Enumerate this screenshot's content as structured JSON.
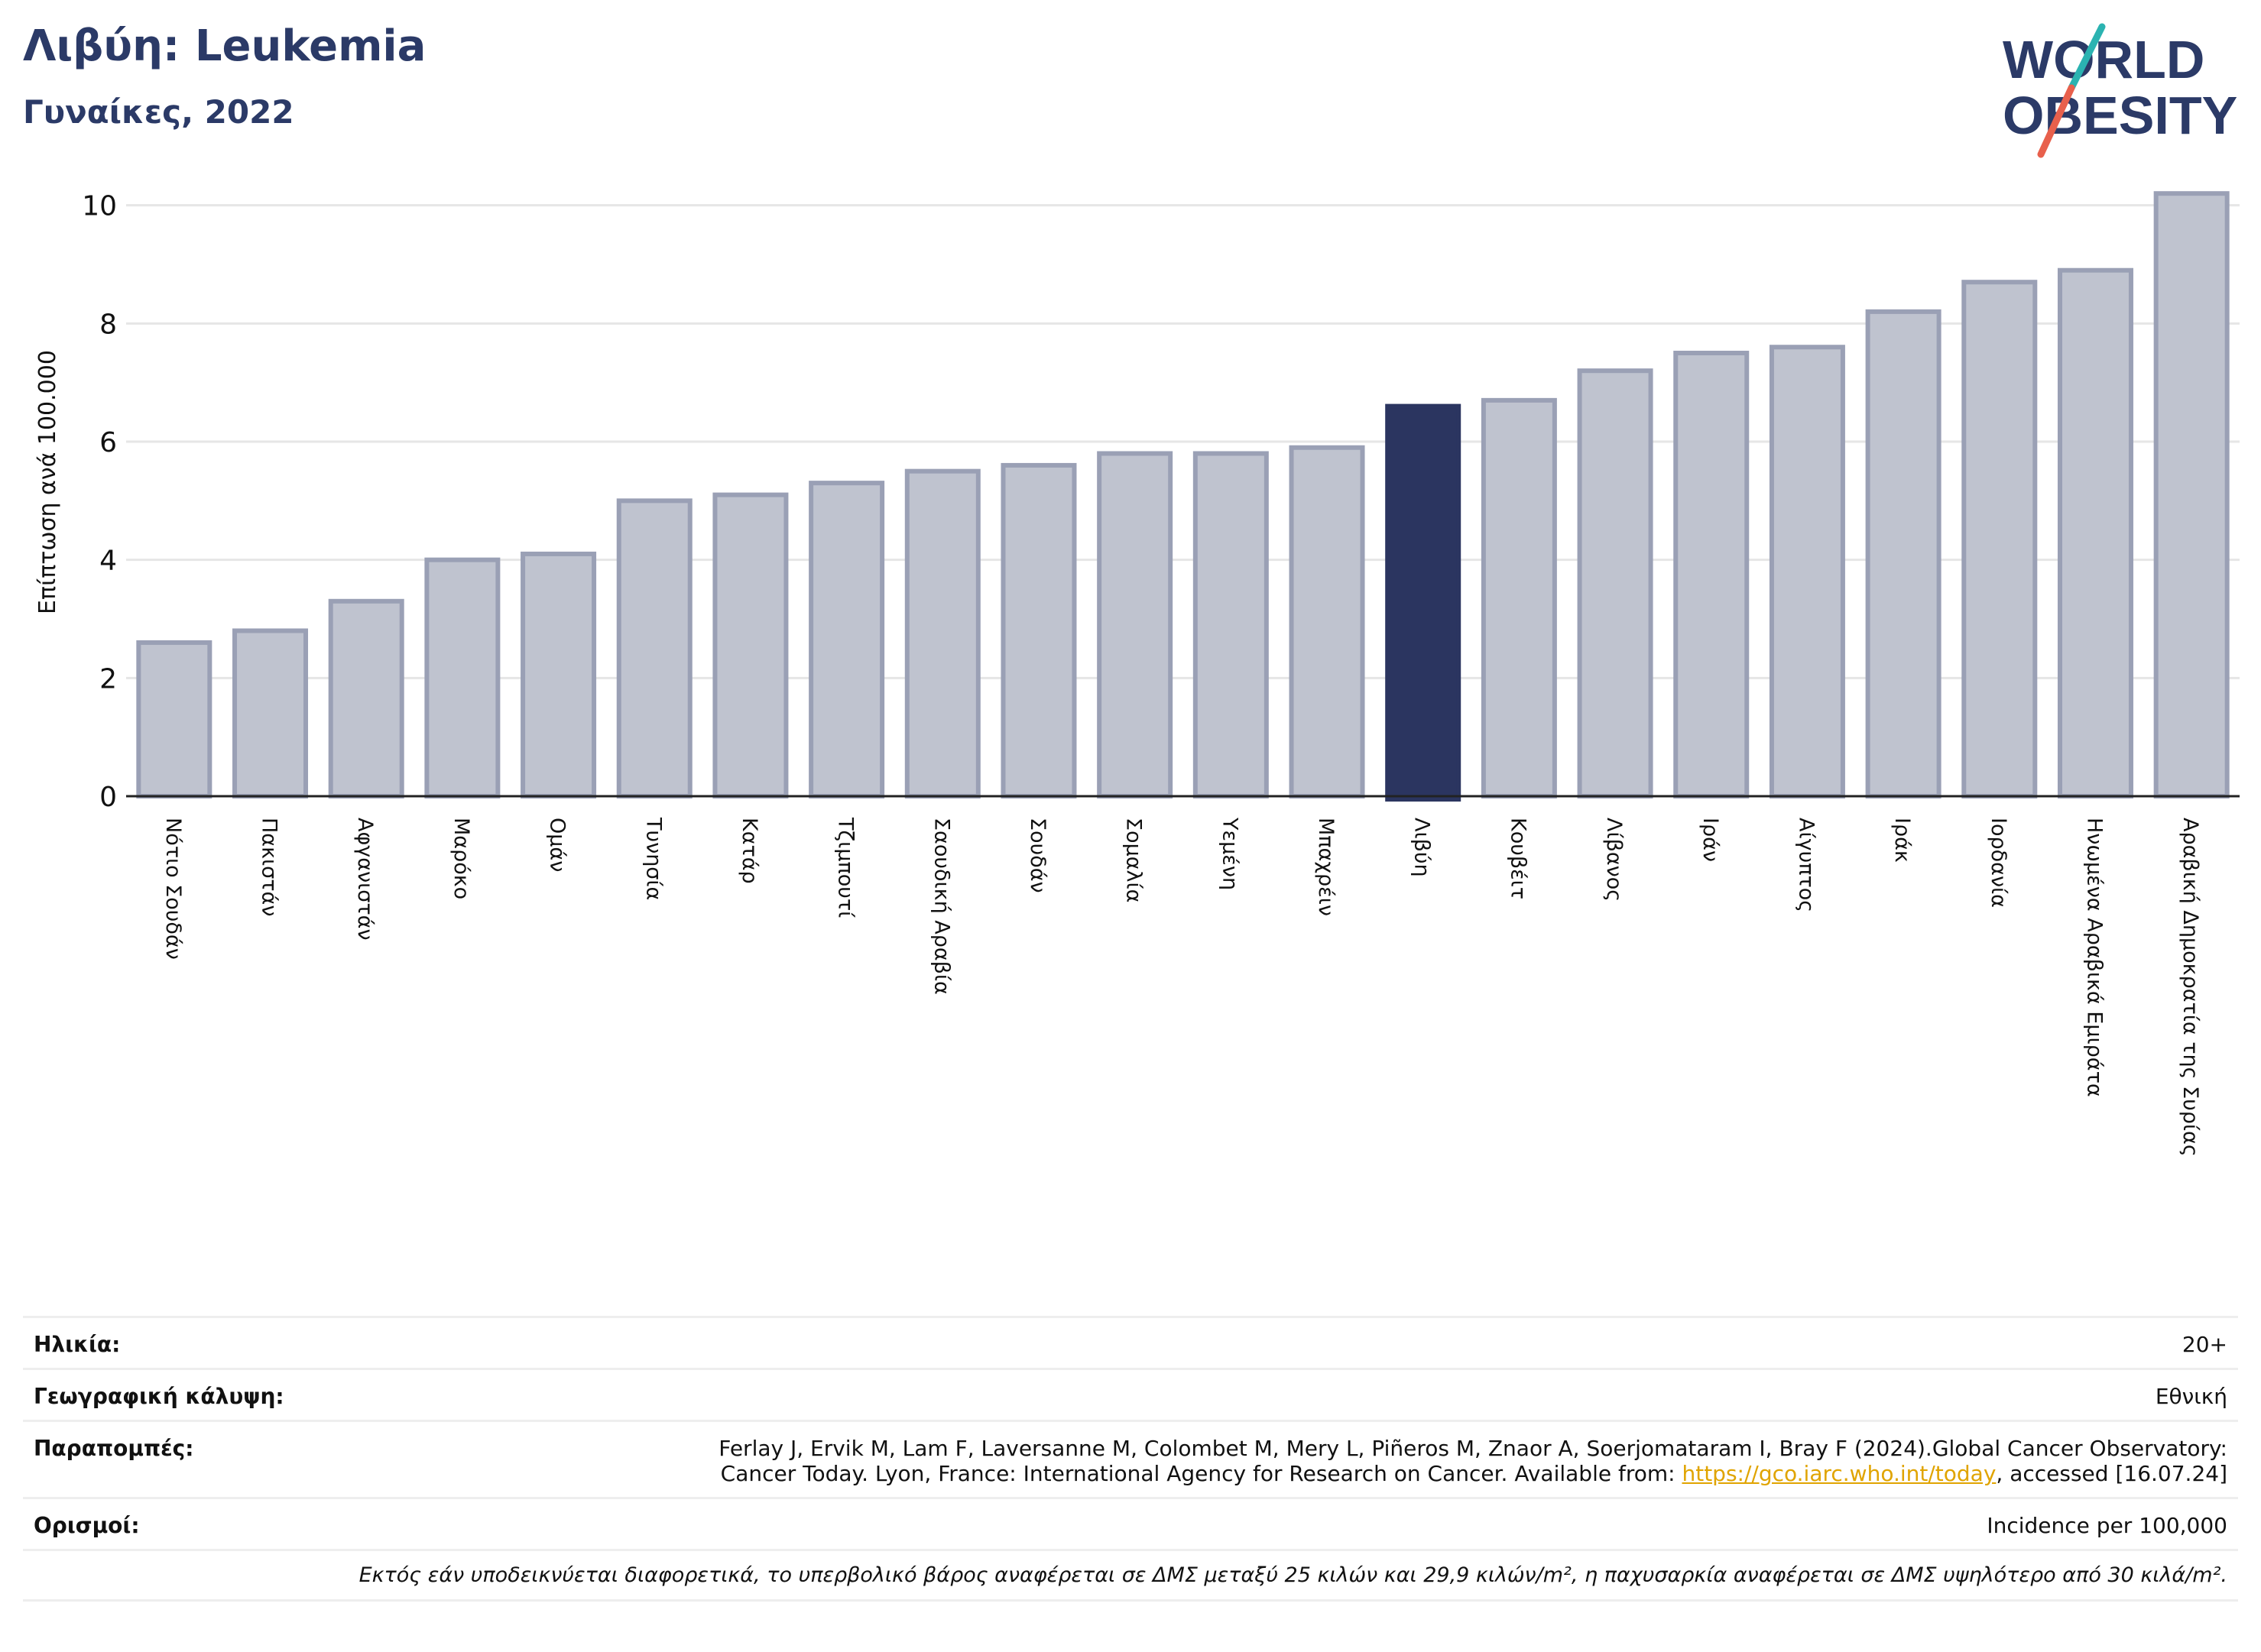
{
  "header": {
    "title": "Λιβύη: Leukemia",
    "subtitle": "Γυναίκες, 2022"
  },
  "logo": {
    "line1": "WORLD",
    "line2": "OBESITY",
    "brand_color": "#2b3a67",
    "accent_teal": "#2bb3b1",
    "accent_red": "#e8604c"
  },
  "chart_data": {
    "type": "bar",
    "ylabel": "Επίπτωση ανά 100.000",
    "ylim": [
      0,
      10.5
    ],
    "yticks": [
      0,
      2,
      4,
      6,
      8,
      10
    ],
    "grid": true,
    "highlight": "Λιβύη",
    "colors": {
      "bar": "#bfc3cf",
      "bar_edge": "#9aa0b5",
      "highlight": "#2b3560"
    },
    "categories": [
      "Νότιο Σουδάν",
      "Πακιστάν",
      "Αφγανιστάν",
      "Μαρόκο",
      "Ομάν",
      "Τυνησία",
      "Κατάρ",
      "Τζιμπουτί",
      "Σαουδική Αραβία",
      "Σουδάν",
      "Σομαλία",
      "Υεμένη",
      "Μπαχρέιν",
      "Λιβύη",
      "Κουβέιτ",
      "Λίβανος",
      "Ιράν",
      "Αίγυπτος",
      "Ιράκ",
      "Ιορδανία",
      "Ηνωμένα Αραβικά Εμιράτα",
      "Αραβική Δημοκρατία της Συρίας"
    ],
    "values": [
      2.6,
      2.8,
      3.3,
      4.0,
      4.1,
      5.0,
      5.1,
      5.3,
      5.5,
      5.6,
      5.8,
      5.8,
      5.9,
      6.6,
      6.7,
      7.2,
      7.5,
      7.6,
      8.2,
      8.7,
      8.9,
      10.2
    ]
  },
  "meta": {
    "age_label": "Ηλικία:",
    "age_value": "20+",
    "coverage_label": "Γεωγραφική κάλυψη:",
    "coverage_value": "Εθνική",
    "refs_label": "Παραπομπές:",
    "refs_text_1": "Ferlay J, Ervik M, Lam F, Laversanne M, Colombet M, Mery L, Piñeros M, Znaor A, Soerjomataram I, Bray F (2024).Global Cancer Observatory:",
    "refs_text_2": "Cancer Today. Lyon, France: International Agency for Research on Cancer. Available from: ",
    "refs_link": "https://gco.iarc.who.int/today",
    "refs_text_3": ", accessed [16.07.24]",
    "defs_label": "Ορισμοί:",
    "defs_value": "Incidence per 100,000",
    "footnote": "Εκτός εάν υποδεικνύεται διαφορετικά, το υπερβολικό βάρος αναφέρεται σε ΔΜΣ μεταξύ 25 κιλών και 29,9 κιλών/m², η παχυσαρκία αναφέρεται σε ΔΜΣ υψηλότερο από 30 κιλά/m²."
  }
}
